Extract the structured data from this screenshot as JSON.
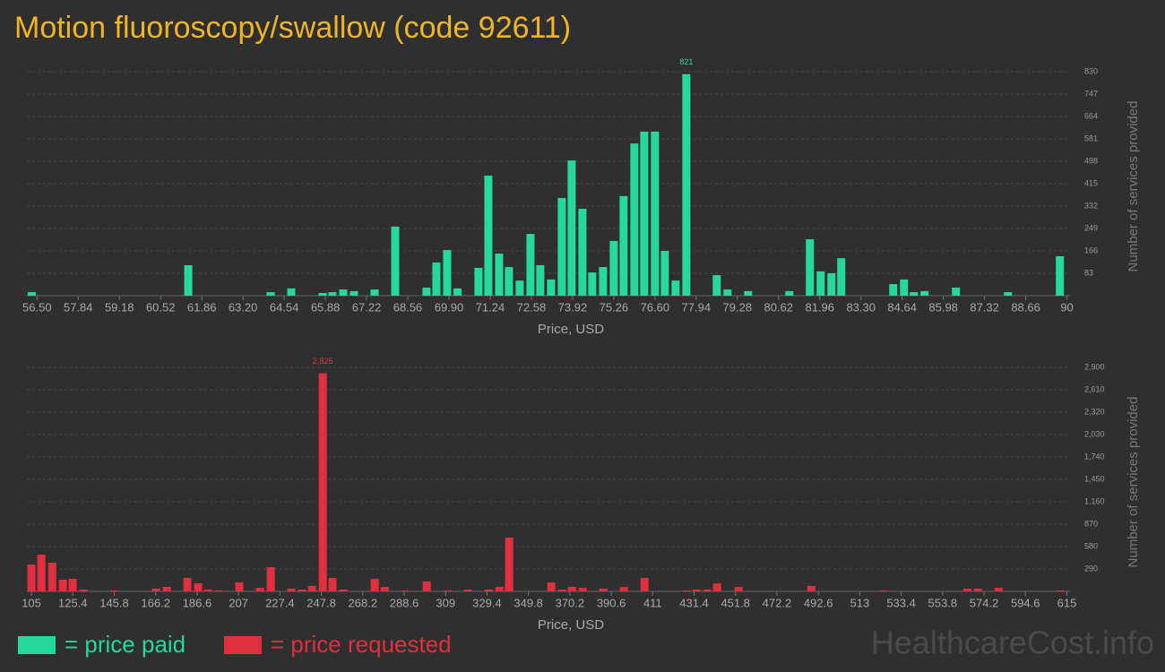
{
  "title": "Motion fluoroscopy/swallow (code 92611)",
  "watermark": "HealthcareCost.info",
  "chart_data": [
    {
      "type": "bar",
      "grid": true,
      "xlabel": "Price, USD",
      "ylabel": "Number of services provided",
      "peak_label": "821",
      "xlim": [
        56.2,
        90.1
      ],
      "ylim": [
        0,
        830
      ],
      "xticks": [
        {
          "value": 56.5,
          "label": "56.50"
        },
        57.84,
        59.18,
        60.52,
        61.86,
        {
          "value": 63.2,
          "label": "63.20"
        },
        64.54,
        65.88,
        67.22,
        68.56,
        {
          "value": 69.9,
          "label": "69.90"
        },
        71.24,
        72.58,
        73.92,
        75.26,
        {
          "value": 76.6,
          "label": "76.60"
        },
        77.94,
        79.28,
        80.62,
        81.96,
        {
          "value": 83.3,
          "label": "83.30"
        },
        84.64,
        85.98,
        87.32,
        88.66,
        90
      ],
      "yticks": [
        83,
        166,
        249,
        332,
        415,
        498,
        581,
        664,
        747,
        830
      ],
      "x": [
        56.33,
        61.42,
        64.1,
        64.77,
        65.79,
        66.11,
        66.46,
        66.81,
        67.48,
        68.15,
        69.17,
        69.49,
        69.84,
        70.18,
        70.86,
        71.18,
        71.53,
        71.85,
        72.2,
        72.55,
        72.87,
        73.22,
        73.57,
        73.89,
        74.24,
        74.56,
        74.91,
        75.26,
        75.58,
        75.93,
        76.25,
        76.6,
        76.92,
        77.27,
        77.62,
        78.61,
        78.96,
        79.63,
        80.97,
        81.64,
        81.99,
        82.34,
        82.66,
        84.35,
        84.7,
        85.02,
        85.37,
        86.39,
        88.08,
        89.77
      ],
      "series": [
        {
          "name": "= price paid",
          "color": "#27d89c",
          "values": [
            13,
            113,
            13,
            27,
            10,
            13,
            23,
            17,
            23,
            256,
            30,
            123,
            169,
            27,
            103,
            445,
            156,
            106,
            56,
            229,
            113,
            60,
            362,
            501,
            322,
            86,
            106,
            203,
            369,
            564,
            608,
            608,
            166,
            56,
            821,
            76,
            23,
            17,
            17,
            209,
            90,
            83,
            139,
            43,
            60,
            13,
            17,
            30,
            13,
            146
          ]
        }
      ]
    },
    {
      "type": "bar",
      "grid": true,
      "xlabel": "Price, USD",
      "ylabel": "Number of services provided",
      "peak_label": "2,825",
      "xlim": [
        101,
        617
      ],
      "ylim": [
        0,
        2900
      ],
      "xticks": [
        105,
        125.4,
        145.8,
        166.2,
        186.6,
        207,
        227.4,
        247.8,
        268.2,
        288.6,
        309,
        329.4,
        349.8,
        370.2,
        390.6,
        411,
        431.4,
        451.8,
        472.2,
        492.6,
        513,
        533.4,
        553.8,
        574.2,
        594.6,
        615
      ],
      "yticks": [
        290,
        580,
        870,
        {
          "value": 1160,
          "label": "1,160"
        },
        {
          "value": 1450,
          "label": "1,450"
        },
        {
          "value": 1740,
          "label": "1,740"
        },
        {
          "value": 2030,
          "label": "2,030"
        },
        {
          "value": 2320,
          "label": "2,320"
        },
        {
          "value": 2610,
          "label": "2,610"
        },
        {
          "value": 2900,
          "label": "2,900"
        }
      ],
      "x": [
        105,
        109.9,
        115.2,
        120.5,
        125.3,
        130.6,
        146.1,
        166.4,
        171.7,
        181.8,
        187.1,
        192,
        197.3,
        207.4,
        217.6,
        222.9,
        233,
        238.3,
        243.2,
        248.5,
        253.3,
        258.6,
        274.1,
        279,
        289.1,
        299.7,
        309.9,
        320,
        330.2,
        335.5,
        340.3,
        361.1,
        366.4,
        371.2,
        376.5,
        386.7,
        396.8,
        407,
        427.7,
        432.6,
        437.9,
        442.7,
        453.3,
        489.1,
        524.9,
        566,
        571.2,
        581.4,
        611.8
      ],
      "series": [
        {
          "name": "= price requested",
          "color": "#e0303f",
          "values": [
            348,
            476,
            371,
            151,
            162,
            23,
            12,
            35,
            58,
            174,
            104,
            23,
            12,
            116,
            46,
            313,
            35,
            23,
            70,
            2825,
            174,
            23,
            162,
            58,
            12,
            128,
            12,
            23,
            23,
            58,
            696,
            116,
            23,
            58,
            46,
            35,
            58,
            174,
            12,
            23,
            23,
            104,
            58,
            70,
            12,
            35,
            35,
            46,
            12
          ]
        }
      ]
    }
  ]
}
